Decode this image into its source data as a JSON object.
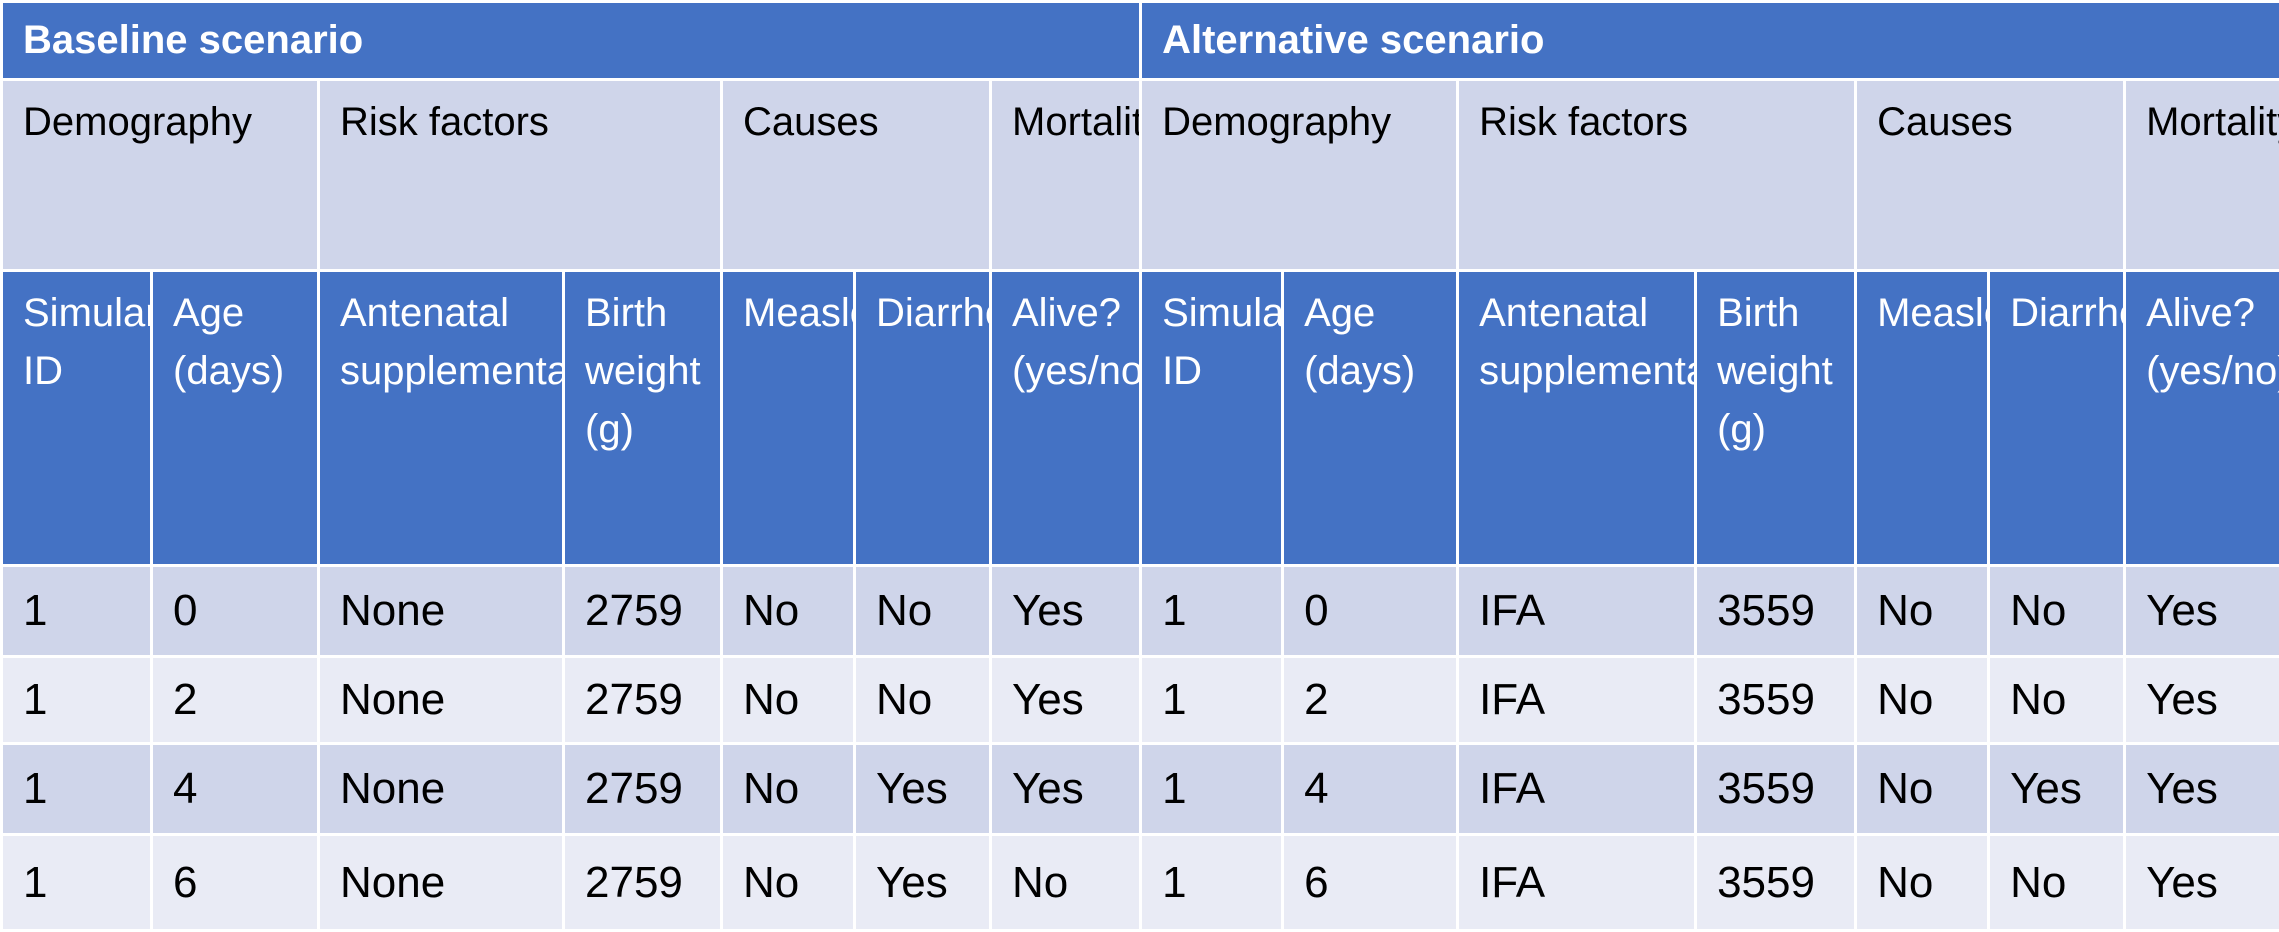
{
  "scenarios": {
    "baseline_title": "Baseline scenario",
    "alternative_title": "Alternative scenario"
  },
  "groups": [
    "Demography",
    "Risk factors",
    "Causes",
    "Mortality"
  ],
  "columns": [
    "Simulant ID",
    "Age (days)",
    "Antenatal supplementation",
    "Birth weight (g)",
    "Measles",
    "Diarrhea",
    "Alive? (yes/no)"
  ],
  "baseline_rows": [
    [
      "1",
      "0",
      "None",
      "2759",
      "No",
      "No",
      "Yes"
    ],
    [
      "1",
      "2",
      "None",
      "2759",
      "No",
      "No",
      "Yes"
    ],
    [
      "1",
      "4",
      "None",
      "2759",
      "No",
      "Yes",
      "Yes"
    ],
    [
      "1",
      "6",
      "None",
      "2759",
      "No",
      "Yes",
      "No"
    ]
  ],
  "alternative_rows": [
    [
      "1",
      "0",
      "IFA",
      "3559",
      "No",
      "No",
      "Yes"
    ],
    [
      "1",
      "2",
      "IFA",
      "3559",
      "No",
      "No",
      "Yes"
    ],
    [
      "1",
      "4",
      "IFA",
      "3559",
      "No",
      "Yes",
      "Yes"
    ],
    [
      "1",
      "6",
      "IFA",
      "3559",
      "No",
      "No",
      "Yes"
    ]
  ],
  "colors": {
    "header_blue": "#4472c4",
    "band_dark": "#cfd5ea",
    "band_light": "#e9ebf5"
  }
}
